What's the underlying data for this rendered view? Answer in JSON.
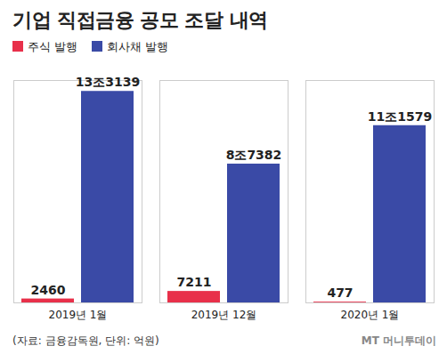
{
  "chart_data": {
    "type": "bar",
    "title": "기업 직접금융 공모 조달 내역",
    "categories": [
      "2019년 1월",
      "2019년 12월",
      "2020년 1월"
    ],
    "series": [
      {
        "name": "주식 발행",
        "color": "#e8304a",
        "values": [
          2460,
          7211,
          477
        ],
        "value_labels": [
          "2460",
          "7211",
          "477"
        ]
      },
      {
        "name": "회사채 발행",
        "color": "#3a4aa6",
        "values": [
          133139,
          87382,
          111579
        ],
        "value_labels": [
          "13조3139",
          "8조7382",
          "11조1579"
        ]
      }
    ],
    "ylim": [
      0,
      140000
    ],
    "tick_labels": "x",
    "data_labels": true,
    "legend": "top-left",
    "source": "(자료: 금융감독원, 단위: 억원)",
    "credit": "MT 머니투데이"
  }
}
